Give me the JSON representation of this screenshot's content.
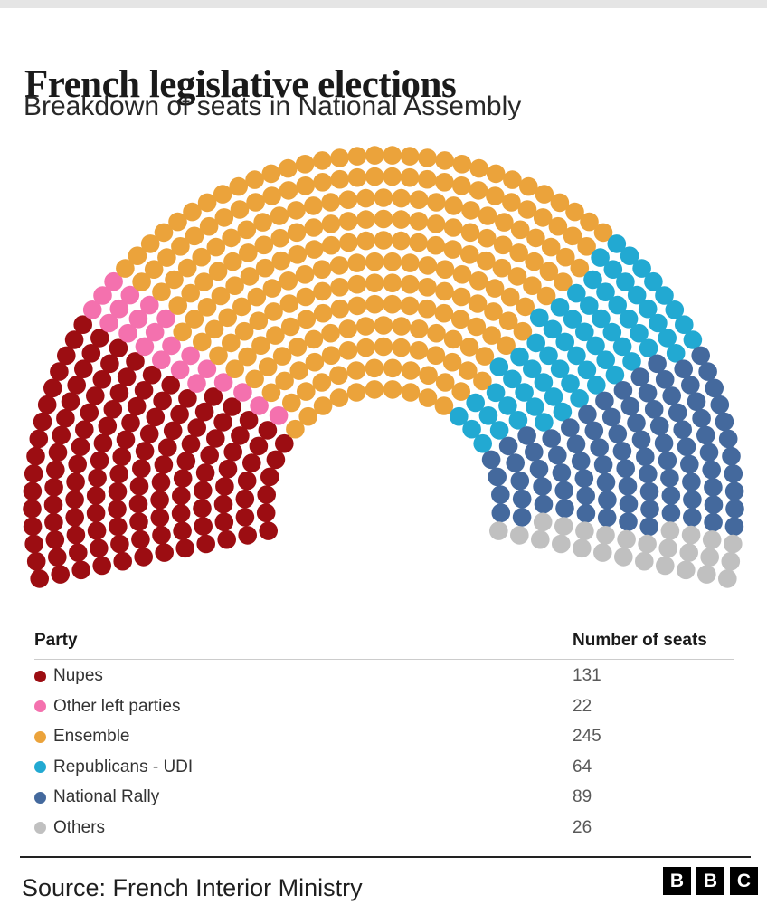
{
  "header": {
    "title": "French legislative elections",
    "subtitle": "Breakdown of seats in National Assembly"
  },
  "chart_data": {
    "type": "parliament-dot",
    "title": "Breakdown of seats in National Assembly",
    "total_seats": 577,
    "series": [
      {
        "name": "Nupes",
        "seats": 131,
        "color": "#9C0D12"
      },
      {
        "name": "Other left parties",
        "seats": 22,
        "color": "#F471AE"
      },
      {
        "name": "Ensemble",
        "seats": 245,
        "color": "#EBA33B"
      },
      {
        "name": "Republicans - UDI",
        "seats": 64,
        "color": "#22A9D2"
      },
      {
        "name": "National Rally",
        "seats": 89,
        "color": "#44699D"
      },
      {
        "name": "Others",
        "seats": 26,
        "color": "#C0C0C0"
      }
    ],
    "layout": {
      "legend_position": "table-below",
      "center": [
        424,
        412
      ],
      "inner_radius": 130,
      "row_step": 23.5,
      "dot_radius": 10.3,
      "start_angle_deg": 191.8,
      "end_angle_deg": -11.8,
      "row_seats": [
        24,
        28,
        33,
        37,
        42,
        46,
        50,
        55,
        59,
        63,
        68,
        72
      ]
    }
  },
  "table": {
    "columns": [
      "Party",
      "Number of seats"
    ]
  },
  "footer": {
    "source": "Source: French Interior Ministry",
    "logo_letters": [
      "B",
      "B",
      "C"
    ]
  }
}
